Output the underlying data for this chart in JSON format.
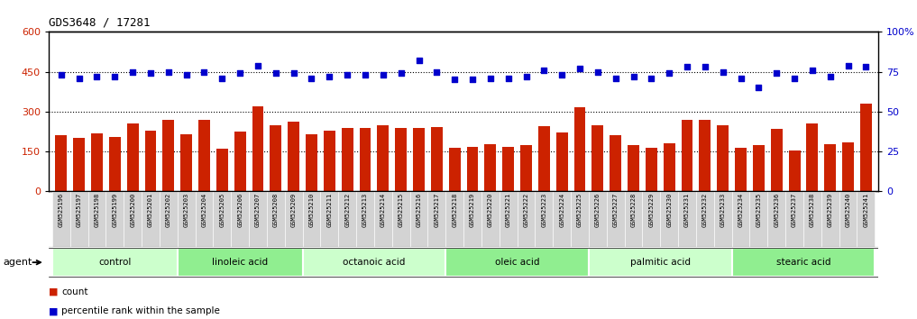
{
  "title": "GDS3648 / 17281",
  "samples": [
    "GSM525196",
    "GSM525197",
    "GSM525198",
    "GSM525199",
    "GSM525200",
    "GSM525201",
    "GSM525202",
    "GSM525203",
    "GSM525204",
    "GSM525205",
    "GSM525206",
    "GSM525207",
    "GSM525208",
    "GSM525209",
    "GSM525210",
    "GSM525211",
    "GSM525212",
    "GSM525213",
    "GSM525214",
    "GSM525215",
    "GSM525216",
    "GSM525217",
    "GSM525218",
    "GSM525219",
    "GSM525220",
    "GSM525221",
    "GSM525222",
    "GSM525223",
    "GSM525224",
    "GSM525225",
    "GSM525226",
    "GSM525227",
    "GSM525228",
    "GSM525229",
    "GSM525230",
    "GSM525231",
    "GSM525232",
    "GSM525233",
    "GSM525234",
    "GSM525235",
    "GSM525236",
    "GSM525237",
    "GSM525238",
    "GSM525239",
    "GSM525240",
    "GSM525241"
  ],
  "counts": [
    210,
    200,
    218,
    205,
    255,
    230,
    268,
    215,
    268,
    162,
    225,
    320,
    248,
    262,
    215,
    228,
    238,
    238,
    248,
    238,
    238,
    242,
    165,
    168,
    178,
    168,
    175,
    245,
    222,
    318,
    248,
    210,
    175,
    165,
    180,
    270,
    270,
    248,
    165,
    175,
    235,
    155,
    255,
    178,
    185,
    330
  ],
  "pct_ranks": [
    73,
    71,
    72,
    72,
    75,
    74,
    75,
    73,
    75,
    71,
    74,
    79,
    74,
    74,
    71,
    72,
    73,
    73,
    73,
    74,
    82,
    75,
    70,
    70,
    71,
    71,
    72,
    76,
    73,
    77,
    75,
    71,
    72,
    71,
    74,
    78,
    78,
    75,
    71,
    65,
    74,
    71,
    76,
    72,
    79,
    78
  ],
  "groups": [
    {
      "label": "control",
      "start": 0,
      "end": 6
    },
    {
      "label": "linoleic acid",
      "start": 7,
      "end": 13
    },
    {
      "label": "octanoic acid",
      "start": 14,
      "end": 21
    },
    {
      "label": "oleic acid",
      "start": 22,
      "end": 29
    },
    {
      "label": "palmitic acid",
      "start": 30,
      "end": 37
    },
    {
      "label": "stearic acid",
      "start": 38,
      "end": 45
    }
  ],
  "bar_color": "#cc2200",
  "scatter_color": "#0000cc",
  "left_ylim": [
    0,
    600
  ],
  "left_yticks": [
    0,
    150,
    300,
    450,
    600
  ],
  "right_ylim": [
    0,
    100
  ],
  "right_yticks": [
    0,
    25,
    50,
    75,
    100
  ],
  "right_yticklabels": [
    "0",
    "25",
    "50",
    "75",
    "100%"
  ],
  "dotted_vals": [
    150,
    300,
    450
  ],
  "group_colors": [
    "#ccffcc",
    "#a8f0a8",
    "#90ee90",
    "#a8f0a8",
    "#90ee90",
    "#a8f0a8"
  ],
  "tick_bg_color": "#d3d3d3",
  "agent_label": "agent",
  "legend_count": "count",
  "legend_pct": "percentile rank within the sample",
  "background_color": "#ffffff"
}
